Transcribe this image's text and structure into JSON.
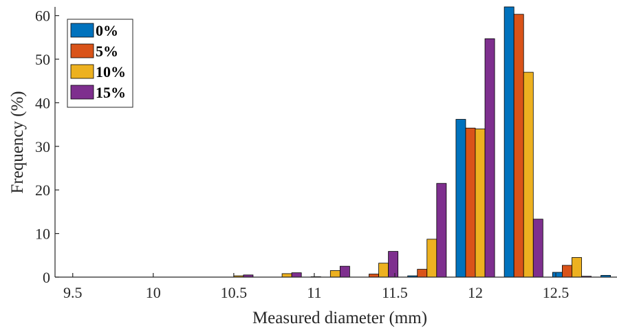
{
  "chart_data": {
    "type": "bar",
    "xlabel": "Measured diameter (mm)",
    "ylabel": "Frequency (%)",
    "xlim": [
      9.39,
      12.88
    ],
    "ylim": [
      0,
      62
    ],
    "x_ticks": [
      9.5,
      10,
      10.5,
      11,
      11.5,
      12,
      12.5
    ],
    "y_ticks": [
      0,
      10,
      20,
      30,
      40,
      50,
      60
    ],
    "x_tick_labels": [
      "9.5",
      "10",
      "10.5",
      "11",
      "11.5",
      "12",
      "12.5"
    ],
    "y_tick_labels": [
      "0",
      "10",
      "20",
      "30",
      "40",
      "50",
      "60"
    ],
    "bin_width": 0.3,
    "bar_width": 0.06,
    "categories": [
      10.5,
      10.8,
      11.1,
      11.4,
      11.7,
      12.0,
      12.3,
      12.6,
      12.9
    ],
    "series": [
      {
        "name": "0%",
        "color": "#0072BD",
        "values": [
          0,
          0,
          0.1,
          0,
          0.3,
          36.2,
          62.0,
          1.1,
          0.4
        ]
      },
      {
        "name": "5%",
        "color": "#D95319",
        "values": [
          0,
          0,
          0,
          0.7,
          1.8,
          34.2,
          60.3,
          2.7,
          0
        ]
      },
      {
        "name": "10%",
        "color": "#EDB120",
        "values": [
          0.3,
          0.8,
          1.5,
          3.2,
          8.7,
          34.0,
          47.0,
          4.5,
          0
        ]
      },
      {
        "name": "15%",
        "color": "#7E2F8E",
        "values": [
          0.5,
          1.0,
          2.5,
          5.9,
          21.5,
          54.7,
          13.3,
          0.2,
          0.1
        ]
      }
    ],
    "legend_position": "top-left",
    "grid": false
  }
}
